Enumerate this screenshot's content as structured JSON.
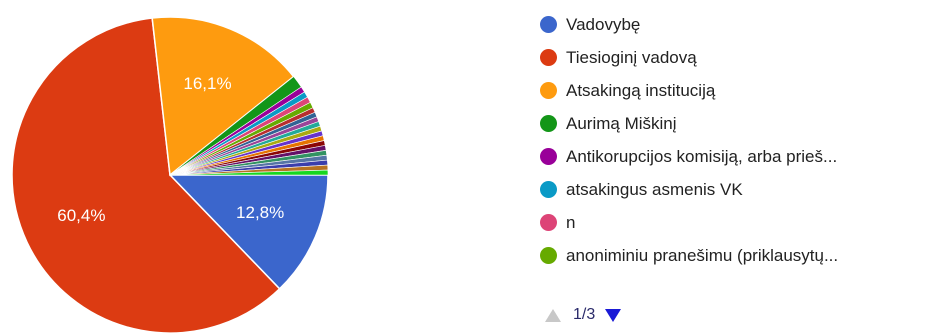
{
  "chart_data": {
    "type": "pie",
    "slices": [
      {
        "label": "Vadovybę",
        "value": 12.8,
        "value_label": "12,8%",
        "color": "#3b66cc"
      },
      {
        "label": "Tiesioginį vadovą",
        "value": 60.4,
        "value_label": "60,4%",
        "color": "#dc3b12"
      },
      {
        "label": "Atsakingą instituciją",
        "value": 16.1,
        "value_label": "16,1%",
        "color": "#fe9b0f"
      },
      {
        "label": "Aurimą Miškinį",
        "value": 1.3,
        "color": "#139618"
      },
      {
        "label": "Antikorupcijos komisiją, arba prieš...",
        "value": 0.6,
        "color": "#990099"
      },
      {
        "label": "atsakingus asmenis VK",
        "value": 0.6,
        "color": "#0a9ac6"
      },
      {
        "label": "n",
        "value": 0.6,
        "color": "#dd4477"
      },
      {
        "label": "anoniminiu pranešimu (priklausytų...",
        "value": 0.6,
        "color": "#66aa00"
      },
      {
        "value": 0.5,
        "color": "#b82e2e"
      },
      {
        "value": 0.5,
        "color": "#316395"
      },
      {
        "value": 0.5,
        "color": "#994499"
      },
      {
        "value": 0.5,
        "color": "#22aa99"
      },
      {
        "value": 0.5,
        "color": "#aaaa11"
      },
      {
        "value": 0.5,
        "color": "#6633cc"
      },
      {
        "value": 0.5,
        "color": "#e67300"
      },
      {
        "value": 0.5,
        "color": "#8b0707"
      },
      {
        "value": 0.5,
        "color": "#651067"
      },
      {
        "value": 0.5,
        "color": "#329262"
      },
      {
        "value": 0.5,
        "color": "#5574a6"
      },
      {
        "value": 0.5,
        "color": "#3b3eac"
      },
      {
        "value": 0.5,
        "color": "#b77322"
      },
      {
        "value": 0.5,
        "color": "#16d620"
      }
    ],
    "legend_position": "right",
    "legend_visible_count": 8
  },
  "legend": {
    "pager": {
      "text": "1/3",
      "prev_icon": "triangle-up-icon",
      "next_icon": "triangle-down-icon"
    }
  }
}
